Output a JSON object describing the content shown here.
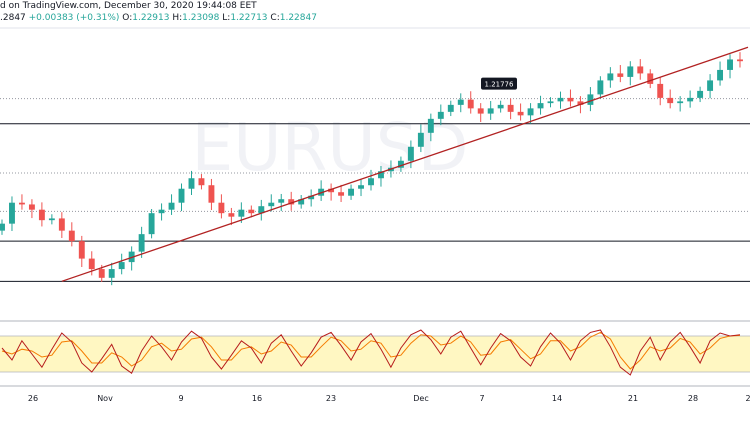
{
  "header": {
    "published": "d on TradingView.com, December 30, 2020 19:44:08 EET",
    "last": ".2847",
    "change": "+0.00383 (+0.31%)",
    "o_label": "O:",
    "o_value": "1.22913",
    "h_label": "H:",
    "h_value": "1.23098",
    "l_label": "L:",
    "l_value": "1.22713",
    "c_label": "C:",
    "c_value": "1.22847"
  },
  "colors": {
    "up": "#26a69a",
    "down": "#ef5350",
    "trendline": "#b22222",
    "oscillator_band": "#fff7c2",
    "k_line": "#b71c1c",
    "d_line": "#f57c00"
  },
  "chart_data": {
    "type": "candlestick",
    "watermark": "EURUSD",
    "x_tick_labels": [
      "26",
      "Nov",
      "9",
      "16",
      "23",
      "Dec",
      "7",
      "14",
      "21",
      "28",
      "2"
    ],
    "y_range": [
      1.155,
      1.238
    ],
    "price_label": "1.21776",
    "horizontal_levels": [
      {
        "value": 1.2106,
        "style": "solid"
      },
      {
        "value": 1.1965,
        "style": "dotted"
      },
      {
        "value": 1.1855,
        "style": "dotted"
      },
      {
        "value": 1.177,
        "style": "solid"
      },
      {
        "value": 1.1655,
        "style": "solid"
      },
      {
        "value": 1.2178,
        "style": "dotted"
      }
    ],
    "trendline": {
      "from": {
        "x_index": 0.4,
        "value": 1.1655
      },
      "to": {
        "x_index": 10.0,
        "value": 1.2325
      }
    },
    "closes": [
      1.182,
      1.188,
      1.1875,
      1.186,
      1.183,
      1.1835,
      1.18,
      1.177,
      1.172,
      1.169,
      1.1665,
      1.169,
      1.171,
      1.174,
      1.179,
      1.185,
      1.186,
      1.188,
      1.192,
      1.195,
      1.193,
      1.188,
      1.185,
      1.184,
      1.186,
      1.185,
      1.187,
      1.188,
      1.189,
      1.1875,
      1.189,
      1.19,
      1.192,
      1.191,
      1.19,
      1.192,
      1.193,
      1.195,
      1.197,
      1.198,
      1.2,
      1.204,
      1.208,
      1.212,
      1.214,
      1.216,
      1.2175,
      1.215,
      1.2135,
      1.215,
      1.216,
      1.214,
      1.213,
      1.215,
      1.2165,
      1.217,
      1.218,
      1.217,
      1.216,
      1.219,
      1.223,
      1.225,
      1.224,
      1.227,
      1.225,
      1.222,
      1.218,
      1.2165,
      1.217,
      1.218,
      1.22,
      1.223,
      1.226,
      1.229,
      1.2285
    ]
  },
  "oscillator": {
    "upper_level": 80,
    "lower_level": 20,
    "k": [
      60,
      40,
      72,
      50,
      28,
      58,
      85,
      70,
      35,
      20,
      42,
      66,
      30,
      18,
      55,
      80,
      62,
      40,
      70,
      88,
      76,
      45,
      25,
      48,
      72,
      60,
      35,
      68,
      82,
      55,
      30,
      52,
      78,
      86,
      64,
      40,
      70,
      84,
      58,
      28,
      60,
      82,
      90,
      74,
      50,
      78,
      88,
      60,
      32,
      60,
      84,
      72,
      45,
      30,
      62,
      85,
      68,
      40,
      72,
      86,
      90,
      62,
      28,
      15,
      55,
      78,
      40,
      70,
      86,
      62,
      35,
      72,
      85,
      80,
      82
    ],
    "d": [
      55,
      50,
      58,
      55,
      45,
      48,
      70,
      72,
      55,
      35,
      35,
      52,
      45,
      30,
      40,
      62,
      68,
      55,
      58,
      75,
      78,
      62,
      40,
      40,
      58,
      62,
      50,
      55,
      70,
      65,
      45,
      45,
      62,
      78,
      72,
      55,
      58,
      72,
      68,
      45,
      48,
      68,
      82,
      80,
      65,
      68,
      80,
      70,
      48,
      50,
      70,
      74,
      58,
      42,
      50,
      72,
      72,
      55,
      62,
      78,
      86,
      75,
      45,
      25,
      40,
      62,
      55,
      60,
      76,
      70,
      50,
      60,
      76,
      80,
      81
    ]
  }
}
